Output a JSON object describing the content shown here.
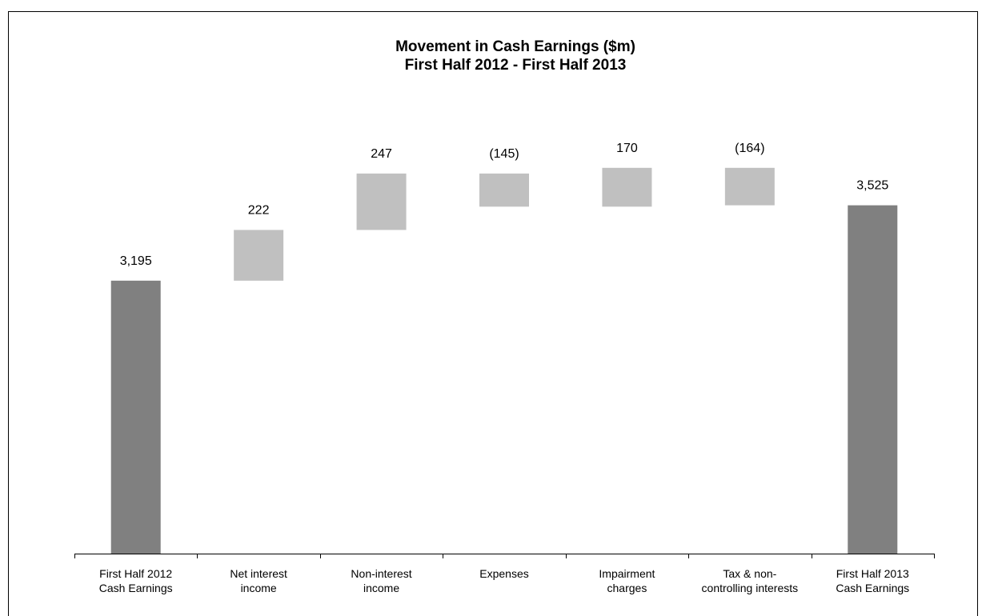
{
  "chart_data": {
    "type": "waterfall",
    "title": "Movement in Cash Earnings ($m)",
    "subtitle": "First Half 2012 - First Half 2013",
    "categories": [
      "First Half 2012\nCash Earnings",
      "Net interest\nincome",
      "Non-interest\nincome",
      "Expenses",
      "Impairment\ncharges",
      "Tax & non-\ncontrolling interests",
      "First Half 2013\nCash Earnings"
    ],
    "values": [
      3195,
      222,
      247,
      -145,
      170,
      -164,
      3525
    ],
    "value_labels": [
      "3,195",
      "222",
      "247",
      "(145)",
      "170",
      "(164)",
      "3,525"
    ],
    "colors": [
      "#808080",
      "#c0c0c0",
      "#c0c0c0",
      "#c0c0c0",
      "#c0c0c0",
      "#c0c0c0",
      "#808080"
    ],
    "ylim": [
      2000,
      4000
    ]
  }
}
